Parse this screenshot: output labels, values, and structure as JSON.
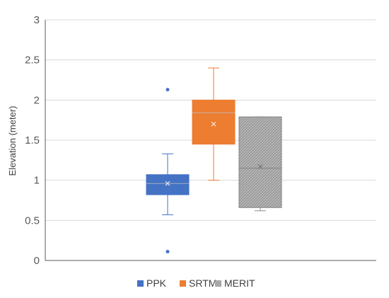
{
  "chart_data": {
    "type": "box",
    "title": "",
    "xlabel": "",
    "ylabel": "Elevation (meter)",
    "ylim": [
      0,
      3
    ],
    "yticks": [
      "0",
      "0.5",
      "1",
      "1.5",
      "2",
      "2.5",
      "3"
    ],
    "grid": true,
    "legend": "bottom",
    "series": [
      {
        "name": "PPK",
        "color": "#4472C4",
        "whisker_low": 0.57,
        "q1": 0.82,
        "median": 0.96,
        "q3": 1.07,
        "whisker_high": 1.33,
        "mean": 0.96,
        "outliers": [
          2.13,
          0.11
        ]
      },
      {
        "name": "SRTM",
        "color": "#ED7D31",
        "whisker_low": 1.0,
        "q1": 1.45,
        "median": 1.84,
        "q3": 2.0,
        "whisker_high": 2.4,
        "mean": 1.7,
        "outliers": []
      },
      {
        "name": "MERIT",
        "color": "#A5A5A5",
        "whisker_low": 0.62,
        "q1": 0.66,
        "median": 1.15,
        "q3": 1.79,
        "whisker_high": 1.79,
        "mean": 1.17,
        "outliers": []
      }
    ]
  }
}
